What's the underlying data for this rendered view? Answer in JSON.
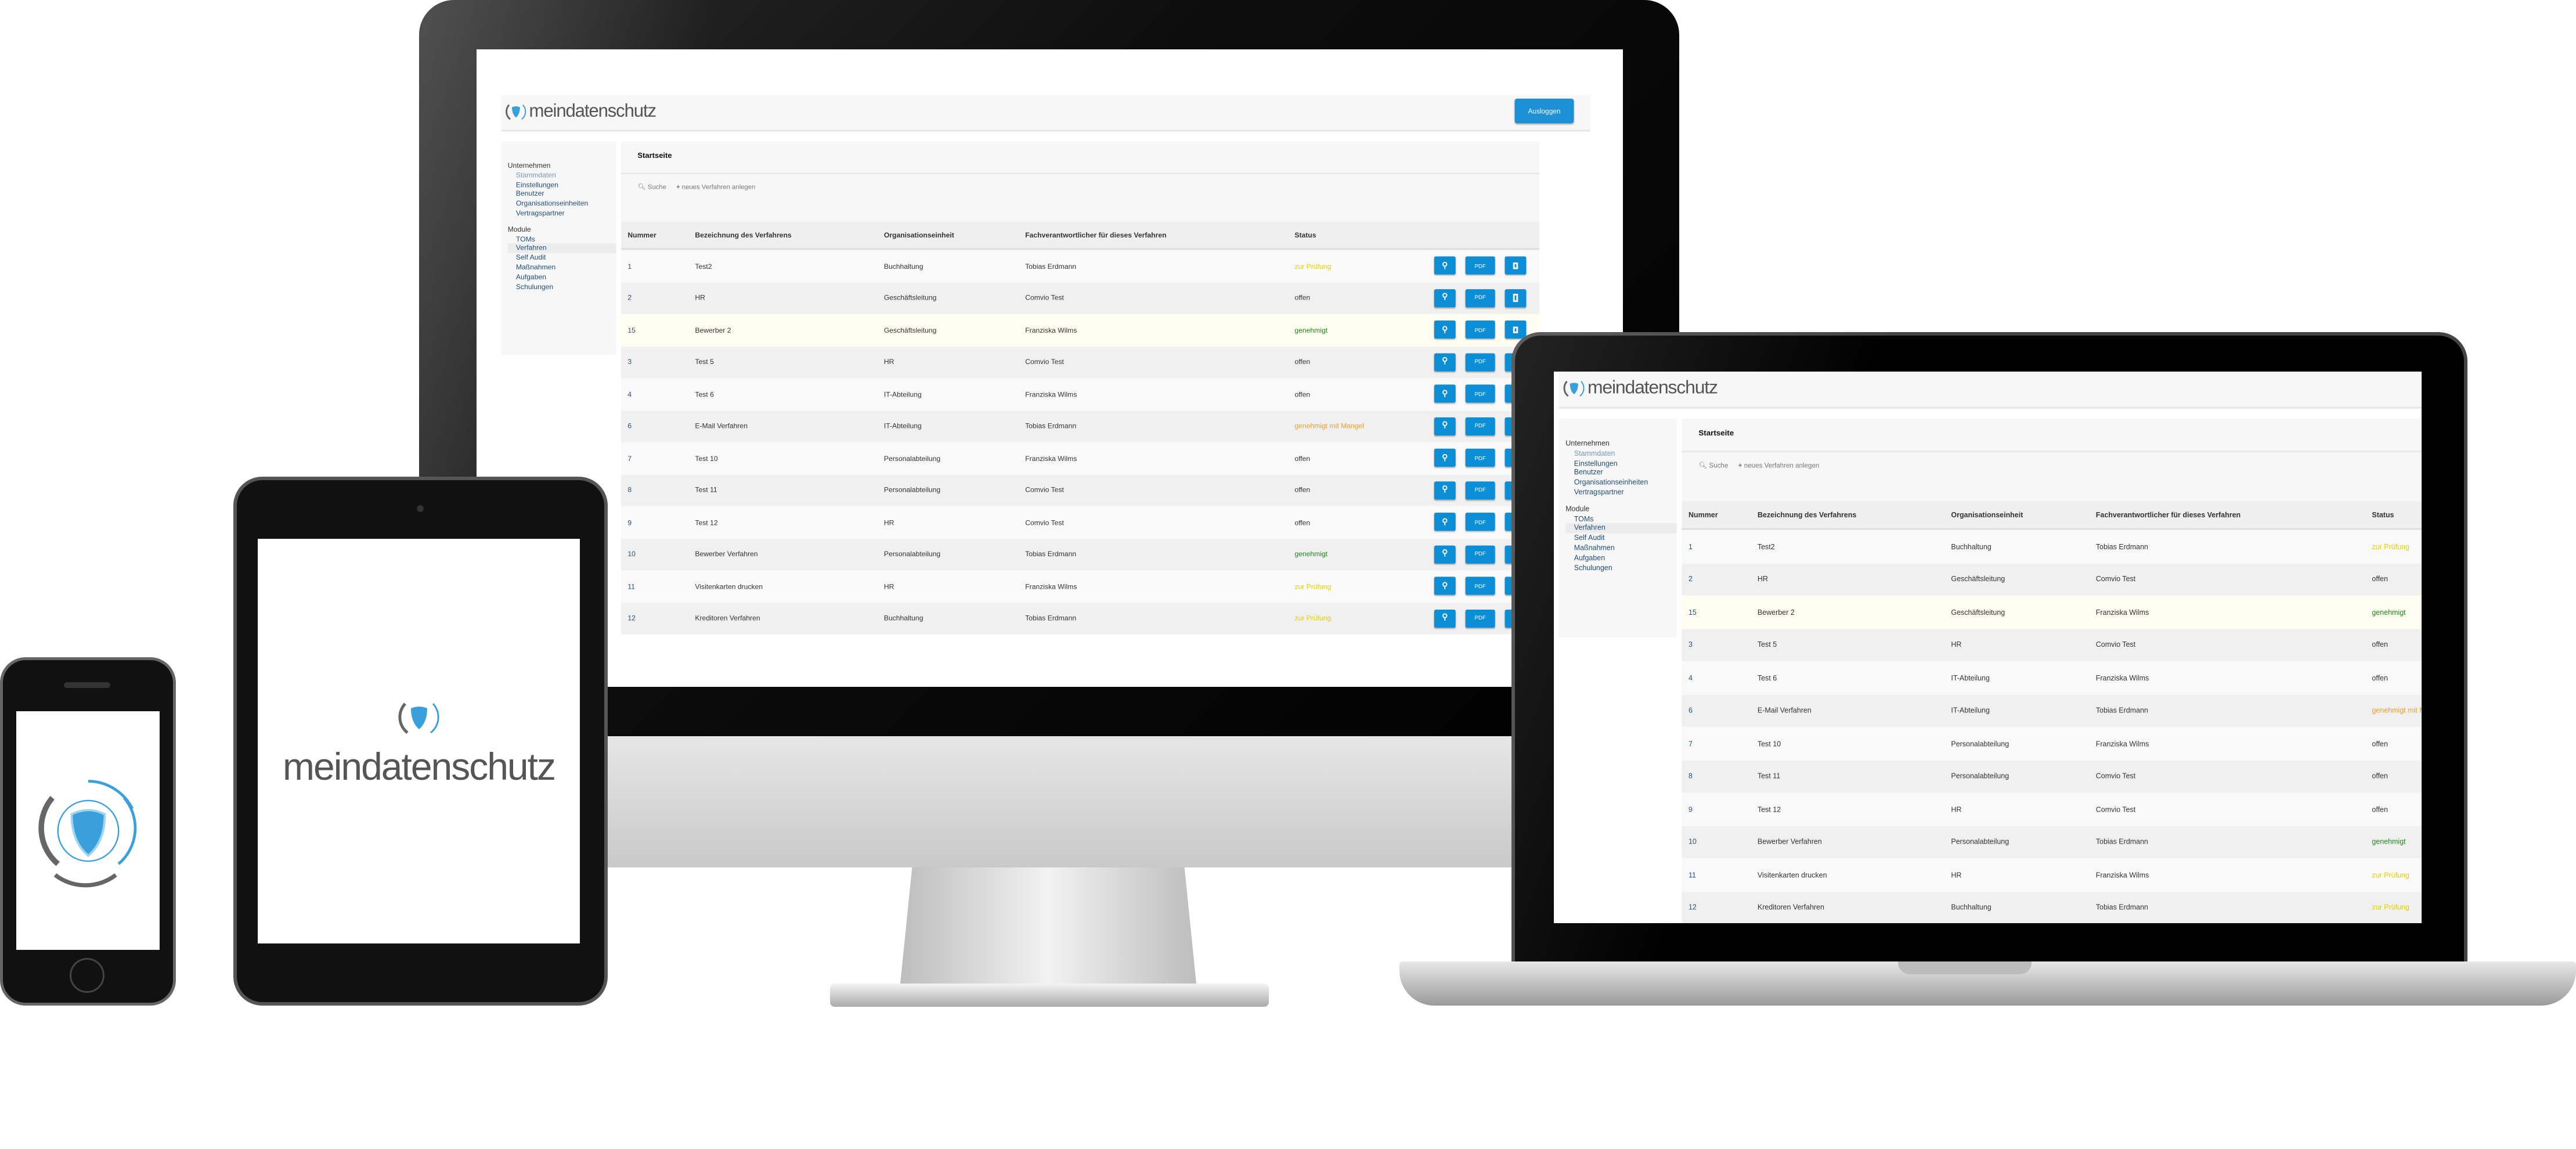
{
  "app": {
    "logo_text": "meindatenschutz",
    "logout_label": "Ausloggen",
    "sidebar": {
      "groups": [
        {
          "label": "Unternehmen",
          "items": [
            "Stammdaten",
            "Einstellungen",
            "Benutzer",
            "Organisationseinheiten",
            "Vertragspartner"
          ]
        },
        {
          "label": "Module",
          "items": [
            "TOMs",
            "Verfahren",
            "Self Audit",
            "Maßnahmen",
            "Aufgaben",
            "Schulungen"
          ]
        }
      ],
      "active_item": "Verfahren"
    },
    "main": {
      "title": "Startseite",
      "search_label": "Suche",
      "new_label": "neues Verfahren anlegen",
      "columns": [
        "Nummer",
        "Bezeichnung des Verfahrens",
        "Organisationseinheit",
        "Fachverantwortlicher für dieses Verfahren",
        "Status"
      ],
      "pdf_label": "PDF",
      "rows": [
        {
          "nummer": "1",
          "bezeichnung": "Test2",
          "org": "Buchhaltung",
          "fach": "Tobias Erdmann",
          "status": "zur Prüfung",
          "status_color": "#e3d000"
        },
        {
          "nummer": "2",
          "bezeichnung": "HR",
          "org": "Geschäftsleitung",
          "fach": "Comvio Test",
          "status": "offen",
          "status_color": "#333333"
        },
        {
          "nummer": "15",
          "bezeichnung": "Bewerber 2",
          "org": "Geschäftsleitung",
          "fach": "Franziska Wilms",
          "status": "genehmigt",
          "status_color": "#1a8a1a",
          "highlighted": true
        },
        {
          "nummer": "3",
          "bezeichnung": "Test 5",
          "org": "HR",
          "fach": "Comvio Test",
          "status": "offen",
          "status_color": "#333333"
        },
        {
          "nummer": "4",
          "bezeichnung": "Test 6",
          "org": "IT-Abteilung",
          "fach": "Franziska Wilms",
          "status": "offen",
          "status_color": "#333333"
        },
        {
          "nummer": "6",
          "bezeichnung": "E-Mail Verfahren",
          "org": "IT-Abteilung",
          "fach": "Tobias Erdmann",
          "status": "genehmigt mit Mangel",
          "status_color": "#f0a020"
        },
        {
          "nummer": "7",
          "bezeichnung": "Test 10",
          "org": "Personalabteilung",
          "fach": "Franziska Wilms",
          "status": "offen",
          "status_color": "#333333"
        },
        {
          "nummer": "8",
          "bezeichnung": "Test 11",
          "org": "Personalabteilung",
          "fach": "Comvio Test",
          "status": "offen",
          "status_color": "#333333"
        },
        {
          "nummer": "9",
          "bezeichnung": "Test 12",
          "org": "HR",
          "fach": "Comvio Test",
          "status": "offen",
          "status_color": "#333333"
        },
        {
          "nummer": "10",
          "bezeichnung": "Bewerber Verfahren",
          "org": "Personalabteilung",
          "fach": "Tobias Erdmann",
          "status": "genehmigt",
          "status_color": "#1a8a1a"
        },
        {
          "nummer": "11",
          "bezeichnung": "Visitenkarten drucken",
          "org": "HR",
          "fach": "Franziska Wilms",
          "status": "zur Prüfung",
          "status_color": "#e3d000"
        },
        {
          "nummer": "12",
          "bezeichnung": "Kreditoren Verfahren",
          "org": "Buchhaltung",
          "fach": "Tobias Erdmann",
          "status": "zur Prüfung",
          "status_color": "#e3d000"
        }
      ]
    }
  },
  "colors": {
    "accent": "#0b8ed6",
    "logo_blue": "#3aa0dc",
    "logo_gray": "#666666"
  },
  "icons": [
    "shield-logo-icon",
    "search-icon",
    "plus-icon",
    "trash-icon"
  ]
}
